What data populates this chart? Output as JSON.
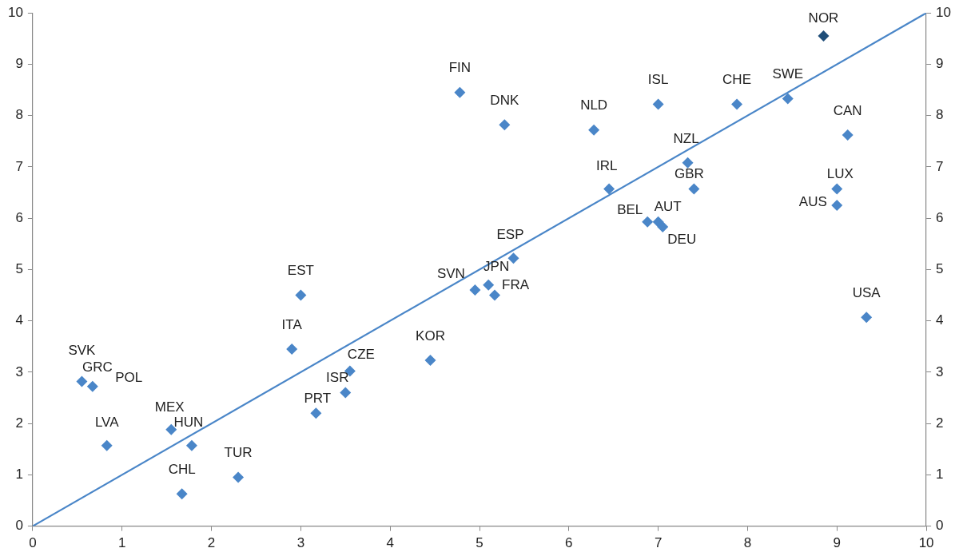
{
  "chart_data": {
    "type": "scatter",
    "xlim": [
      0,
      10
    ],
    "xticks": [
      0,
      1,
      2,
      3,
      4,
      5,
      6,
      7,
      8,
      9,
      10
    ],
    "ylim": [
      0,
      10
    ],
    "yticks": [
      0,
      1,
      2,
      3,
      4,
      5,
      6,
      7,
      8,
      9,
      10
    ],
    "y2lim": [
      0,
      10
    ],
    "y2ticks": [
      0,
      1,
      2,
      3,
      4,
      5,
      6,
      7,
      8,
      9,
      10
    ],
    "grid": false,
    "legend": false,
    "series": [
      {
        "marker": "diamond",
        "x": [
          8.85,
          4.78,
          5.28,
          6.28,
          7.0,
          7.88,
          8.45,
          9.12,
          7.33,
          7.4,
          6.45,
          9.0,
          9.0,
          6.88,
          7.0,
          7.05,
          5.38,
          4.95,
          5.1,
          5.17,
          9.33,
          3.0,
          2.9,
          4.45,
          3.55,
          3.5,
          3.17,
          0.55,
          0.67,
          0.7,
          1.55,
          1.78,
          0.83,
          1.67,
          2.3
        ],
        "values": [
          9.55,
          8.45,
          7.82,
          7.72,
          8.22,
          8.22,
          8.33,
          7.62,
          7.08,
          6.57,
          6.57,
          6.57,
          6.25,
          5.93,
          5.93,
          5.83,
          5.22,
          4.6,
          4.7,
          4.5,
          4.07,
          4.5,
          3.45,
          3.23,
          3.02,
          2.6,
          2.2,
          2.82,
          2.72,
          null,
          1.88,
          1.57,
          1.57,
          0.63,
          0.95
        ],
        "colors": [
          "#1f4e79",
          "#4a86c8",
          "#4a86c8",
          "#4a86c8",
          "#4a86c8",
          "#4a86c8",
          "#4a86c8",
          "#4a86c8",
          "#4a86c8",
          "#4a86c8",
          "#4a86c8",
          "#4a86c8",
          "#4a86c8",
          "#4a86c8",
          "#4a86c8",
          "#4a86c8",
          "#4a86c8",
          "#4a86c8",
          "#4a86c8",
          "#4a86c8",
          "#4a86c8",
          "#4a86c8",
          "#4a86c8",
          "#4a86c8",
          "#4a86c8",
          "#4a86c8",
          "#4a86c8",
          "#4a86c8",
          "#4a86c8",
          "#4a86c8",
          "#4a86c8",
          "#4a86c8",
          "#4a86c8",
          "#4a86c8",
          "#4a86c8"
        ]
      },
      {
        "type": "line",
        "x": [
          0,
          10
        ],
        "values": [
          0,
          10
        ],
        "color": "#4a86c8"
      }
    ],
    "annotations": [
      {
        "text": "NOR",
        "x": 8.85,
        "y": 9.55
      },
      {
        "text": "FIN",
        "x": 4.78,
        "y": 8.45
      },
      {
        "text": "DNK",
        "x": 5.28,
        "y": 7.82
      },
      {
        "text": "NLD",
        "x": 6.28,
        "y": 7.72
      },
      {
        "text": "ISL",
        "x": 7.0,
        "y": 8.22
      },
      {
        "text": "CHE",
        "x": 7.88,
        "y": 8.22
      },
      {
        "text": "SWE",
        "x": 8.45,
        "y": 8.33
      },
      {
        "text": "CAN",
        "x": 9.12,
        "y": 7.62
      },
      {
        "text": "NZL",
        "x": 7.33,
        "y": 7.08
      },
      {
        "text": "GBR",
        "x": 7.4,
        "y": 6.57
      },
      {
        "text": "IRL",
        "x": 6.45,
        "y": 6.57
      },
      {
        "text": "LUX",
        "x": 9.0,
        "y": 6.57
      },
      {
        "text": "AUS",
        "x": 9.0,
        "y": 6.25
      },
      {
        "text": "BEL",
        "x": 6.88,
        "y": 5.93
      },
      {
        "text": "AUT",
        "x": 7.0,
        "y": 5.93
      },
      {
        "text": "DEU",
        "x": 7.05,
        "y": 5.83
      },
      {
        "text": "ESP",
        "x": 5.38,
        "y": 5.22
      },
      {
        "text": "SVN",
        "x": 4.95,
        "y": 4.6
      },
      {
        "text": "JPN",
        "x": 5.1,
        "y": 4.7
      },
      {
        "text": "FRA",
        "x": 5.17,
        "y": 4.5
      },
      {
        "text": "USA",
        "x": 9.33,
        "y": 4.07
      },
      {
        "text": "EST",
        "x": 3.0,
        "y": 4.5
      },
      {
        "text": "ITA",
        "x": 2.9,
        "y": 3.45
      },
      {
        "text": "KOR",
        "x": 4.45,
        "y": 3.23
      },
      {
        "text": "CZE",
        "x": 3.55,
        "y": 3.02
      },
      {
        "text": "ISR",
        "x": 3.5,
        "y": 2.6
      },
      {
        "text": "PRT",
        "x": 3.17,
        "y": 2.2
      },
      {
        "text": "SVK",
        "x": 0.55,
        "y": 2.82
      },
      {
        "text": "GRC",
        "x": 0.67,
        "y": 2.72
      },
      {
        "text": "POL",
        "x": 0.7,
        "y": 2.7
      },
      {
        "text": "MEX",
        "x": 1.55,
        "y": 1.88
      },
      {
        "text": "HUN",
        "x": 1.78,
        "y": 1.57
      },
      {
        "text": "LVA",
        "x": 0.83,
        "y": 1.57
      },
      {
        "text": "CHL",
        "x": 1.67,
        "y": 0.63
      },
      {
        "text": "TUR",
        "x": 2.3,
        "y": 0.95
      }
    ]
  }
}
